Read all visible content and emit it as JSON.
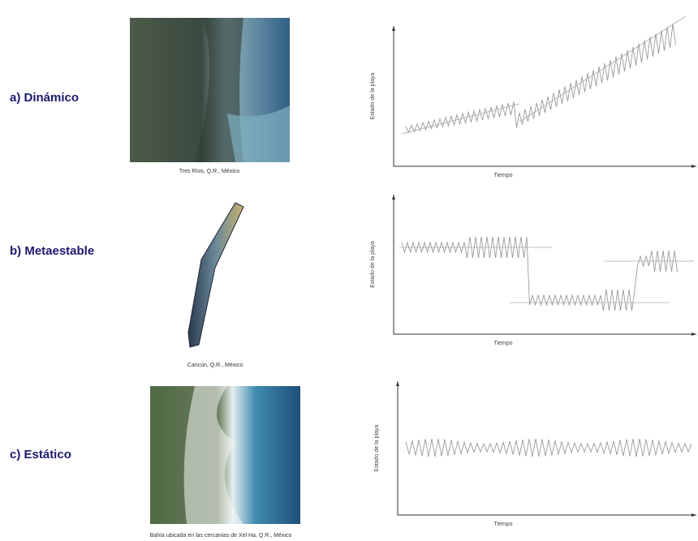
{
  "rows": [
    {
      "label": "a) Dinámico",
      "caption": "Tres Ríos, Q.R., México",
      "chart": {
        "y_label": "Estado de la playa",
        "x_label": "Tiempo"
      }
    },
    {
      "label": "b) Metaestable",
      "caption": "Cancún, Q.R., México",
      "chart": {
        "y_label": "Estado de la playa",
        "x_label": "Tiempo"
      }
    },
    {
      "label": "c) Estático",
      "caption": "Bahía ubicada en las cercanías de Xel Ha, Q.R., México",
      "chart": {
        "y_label": "Estado de la playa",
        "x_label": "Tiempo"
      }
    }
  ]
}
